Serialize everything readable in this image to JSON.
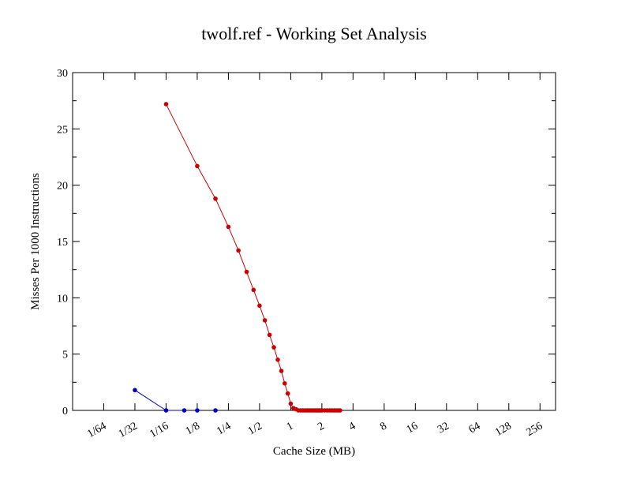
{
  "chart_data": {
    "type": "line",
    "title": "twolf.ref - Working Set Analysis",
    "xlabel": "Cache Size (MB)",
    "ylabel": "Misses Per 1000 Instructions",
    "x_scale": "log2",
    "x_tick_labels": [
      "1/64",
      "1/32",
      "1/16",
      "1/8",
      "1/4",
      "1/2",
      "1",
      "2",
      "4",
      "8",
      "16",
      "32",
      "64",
      "128",
      "256"
    ],
    "x_tick_values": [
      0.015625,
      0.03125,
      0.0625,
      0.125,
      0.25,
      0.5,
      1,
      2,
      4,
      8,
      16,
      32,
      64,
      128,
      256
    ],
    "xlim": [
      0.0078125,
      362
    ],
    "ylim": [
      0,
      30
    ],
    "y_ticks": [
      0,
      5,
      10,
      15,
      20,
      25,
      30
    ],
    "grid": false,
    "series": [
      {
        "color": "#0000cc",
        "connected": [
          true,
          true,
          false,
          false,
          false
        ],
        "points": [
          {
            "x": 0.03125,
            "y": 1.8
          },
          {
            "x": 0.0625,
            "y": 0.0
          },
          {
            "x": 0.09375,
            "y": 0.0
          },
          {
            "x": 0.125,
            "y": 0.0
          },
          {
            "x": 0.1875,
            "y": 0.0
          }
        ]
      },
      {
        "color": "#cc0000",
        "connected": true,
        "points": [
          {
            "x": 0.0625,
            "y": 27.2
          },
          {
            "x": 0.125,
            "y": 21.7
          },
          {
            "x": 0.1875,
            "y": 18.8
          },
          {
            "x": 0.25,
            "y": 16.3
          },
          {
            "x": 0.3125,
            "y": 14.2
          },
          {
            "x": 0.375,
            "y": 12.3
          },
          {
            "x": 0.4375,
            "y": 10.7
          },
          {
            "x": 0.5,
            "y": 9.3
          },
          {
            "x": 0.5625,
            "y": 8.0
          },
          {
            "x": 0.625,
            "y": 6.7
          },
          {
            "x": 0.6875,
            "y": 5.6
          },
          {
            "x": 0.75,
            "y": 4.5
          },
          {
            "x": 0.8125,
            "y": 3.5
          },
          {
            "x": 0.875,
            "y": 2.4
          },
          {
            "x": 0.9375,
            "y": 1.5
          },
          {
            "x": 1.0,
            "y": 0.6
          },
          {
            "x": 1.0625,
            "y": 0.2
          },
          {
            "x": 1.125,
            "y": 0.1
          },
          {
            "x": 1.1875,
            "y": 0.0
          },
          {
            "x": 1.25,
            "y": 0.0
          },
          {
            "x": 1.3125,
            "y": 0.0
          },
          {
            "x": 1.375,
            "y": 0.0
          },
          {
            "x": 1.4375,
            "y": 0.0
          },
          {
            "x": 1.5,
            "y": 0.0
          },
          {
            "x": 1.5625,
            "y": 0.0
          },
          {
            "x": 1.625,
            "y": 0.0
          },
          {
            "x": 1.6875,
            "y": 0.0
          },
          {
            "x": 1.75,
            "y": 0.0
          },
          {
            "x": 1.8125,
            "y": 0.0
          },
          {
            "x": 1.875,
            "y": 0.0
          },
          {
            "x": 1.9375,
            "y": 0.0
          },
          {
            "x": 2.0,
            "y": 0.0
          },
          {
            "x": 2.125,
            "y": 0.0
          },
          {
            "x": 2.25,
            "y": 0.0
          },
          {
            "x": 2.375,
            "y": 0.0
          },
          {
            "x": 2.5,
            "y": 0.0
          },
          {
            "x": 2.625,
            "y": 0.0
          },
          {
            "x": 2.75,
            "y": 0.0
          },
          {
            "x": 2.875,
            "y": 0.0
          },
          {
            "x": 3.0,
            "y": 0.0
          }
        ]
      }
    ]
  }
}
